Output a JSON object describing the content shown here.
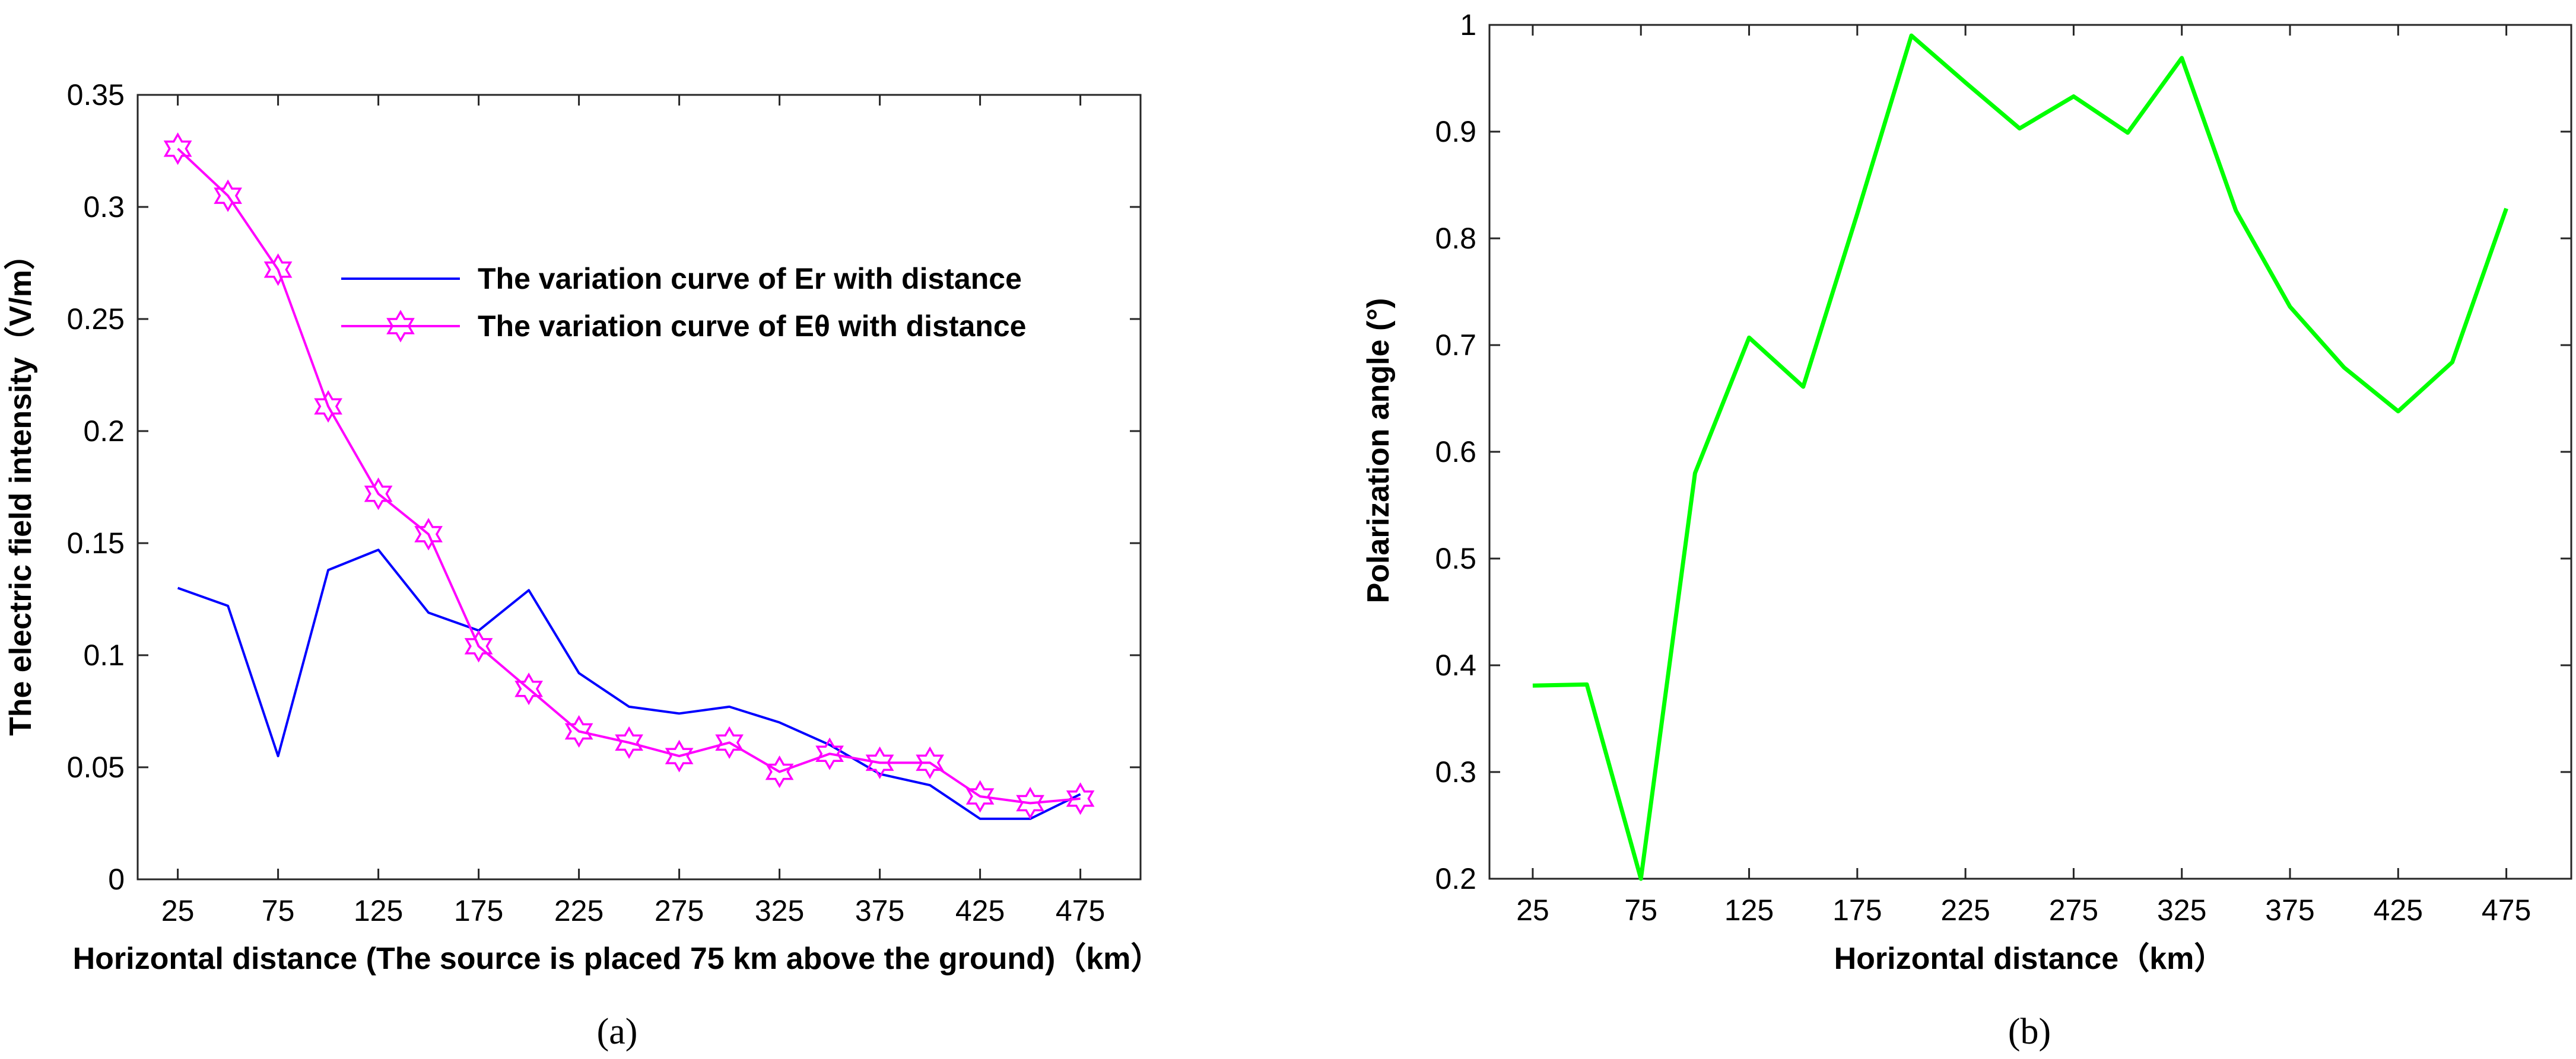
{
  "chart_data": [
    {
      "type": "line",
      "panel_label": "(a)",
      "xlabel": "Horizontal distance (The source is placed 75 km above the ground)（km）",
      "ylabel": "The electric field intensity（V/m）",
      "xlim": [
        5,
        505
      ],
      "ylim": [
        0,
        0.35
      ],
      "xticks": [
        25,
        75,
        125,
        175,
        225,
        275,
        325,
        375,
        425,
        475
      ],
      "yticks": [
        0,
        0.05,
        0.1,
        0.15,
        0.2,
        0.25,
        0.3,
        0.35
      ],
      "ytick_labels": [
        "0",
        "0.05",
        "0.1",
        "0.15",
        "0.2",
        "0.25",
        "0.3",
        "0.35"
      ],
      "legend_position": "upper-middle",
      "series": [
        {
          "name": "The variation curve of Er with distance",
          "color": "#0000ff",
          "marker": "none",
          "x": [
            25,
            50,
            75,
            100,
            125,
            150,
            175,
            200,
            225,
            250,
            275,
            300,
            325,
            350,
            375,
            400,
            425,
            450,
            475
          ],
          "y": [
            0.13,
            0.122,
            0.055,
            0.138,
            0.147,
            0.119,
            0.111,
            0.129,
            0.092,
            0.077,
            0.074,
            0.077,
            0.07,
            0.06,
            0.047,
            0.042,
            0.027,
            0.027,
            0.038
          ]
        },
        {
          "name": "The variation curve of Eθ with distance",
          "color": "#ff00ff",
          "marker": "hexagram",
          "x": [
            25,
            50,
            75,
            100,
            125,
            150,
            175,
            200,
            225,
            250,
            275,
            300,
            325,
            350,
            375,
            400,
            425,
            450,
            475
          ],
          "y": [
            0.326,
            0.305,
            0.272,
            0.211,
            0.172,
            0.154,
            0.104,
            0.085,
            0.066,
            0.061,
            0.055,
            0.061,
            0.048,
            0.056,
            0.052,
            0.052,
            0.037,
            0.034,
            0.036
          ]
        }
      ]
    },
    {
      "type": "line",
      "panel_label": "(b)",
      "xlabel": "Horizontal distance（km）",
      "ylabel": "Polarization angle (°)",
      "xlim": [
        5,
        505
      ],
      "ylim": [
        0.2,
        1
      ],
      "xticks": [
        25,
        75,
        125,
        175,
        225,
        275,
        325,
        375,
        425,
        475
      ],
      "yticks": [
        0.2,
        0.3,
        0.4,
        0.5,
        0.6,
        0.7,
        0.8,
        0.9,
        1
      ],
      "ytick_labels": [
        "0.2",
        "0.3",
        "0.4",
        "0.5",
        "0.6",
        "0.7",
        "0.8",
        "0.9",
        "1"
      ],
      "series": [
        {
          "color": "#00ff00",
          "marker": "none",
          "x": [
            25,
            50,
            75,
            100,
            125,
            150,
            175,
            200,
            225,
            250,
            275,
            300,
            325,
            350,
            375,
            400,
            425,
            450,
            475
          ],
          "y": [
            0.381,
            0.382,
            0.2,
            0.58,
            0.707,
            0.661,
            0.823,
            0.99,
            0.946,
            0.903,
            0.933,
            0.899,
            0.969,
            0.826,
            0.736,
            0.679,
            0.638,
            0.684,
            0.828
          ]
        }
      ]
    }
  ]
}
